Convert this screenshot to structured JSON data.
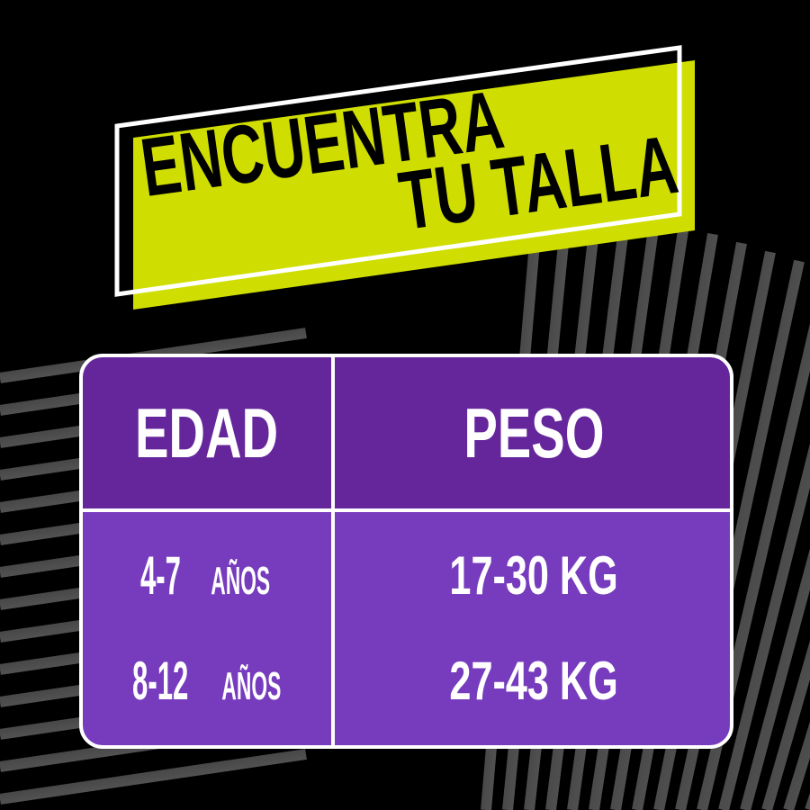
{
  "banner": {
    "line1": "ENCUENTRA",
    "line2": "TU TALLA"
  },
  "table": {
    "headers": [
      "EDAD",
      "PESO"
    ],
    "rows": [
      {
        "age_num": "4-7",
        "age_unit": "AÑOS",
        "weight": "17-30 KG"
      },
      {
        "age_num": "8-12",
        "age_unit": "AÑOS",
        "weight": "27-43 KG"
      }
    ]
  },
  "colors": {
    "background": "#000000",
    "banner_fill": "#cfde00",
    "header_fill": "#65269b",
    "body_fill": "#773cbd",
    "text": "#ffffff"
  }
}
